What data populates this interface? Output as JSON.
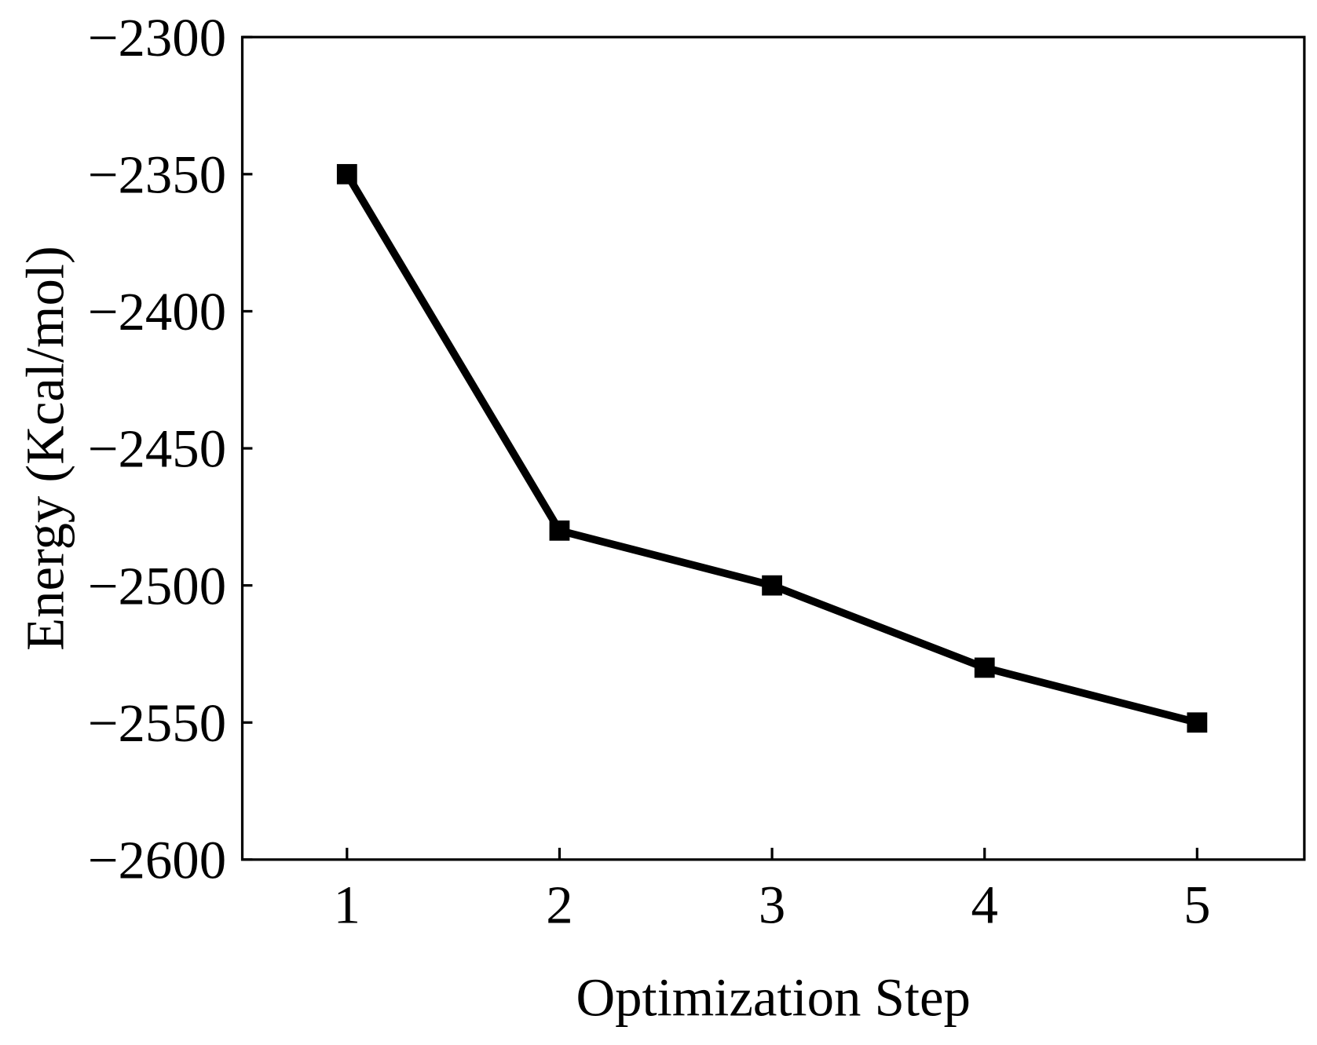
{
  "chart_data": {
    "type": "line",
    "title": "",
    "xlabel": "Optimization Step",
    "ylabel": "Energy (Kcal/mol)",
    "x": [
      1,
      2,
      3,
      4,
      5
    ],
    "xlim": [
      0.5,
      5.5
    ],
    "ylim": [
      -2600,
      -2300
    ],
    "xticks": [
      1,
      2,
      3,
      4,
      5
    ],
    "xtick_labels": [
      "1",
      "2",
      "3",
      "4",
      "5"
    ],
    "yticks": [
      -2300,
      -2350,
      -2400,
      -2450,
      -2500,
      -2550,
      -2600
    ],
    "ytick_labels": [
      "−2300",
      "−2350",
      "−2400",
      "−2450",
      "−2500",
      "−2550",
      "−2600"
    ],
    "series": [
      {
        "values": [
          -2350,
          -2480,
          -2500,
          -2530,
          -2550
        ],
        "color": "#000000",
        "marker": "square"
      }
    ],
    "grid": false,
    "legend": "none"
  }
}
